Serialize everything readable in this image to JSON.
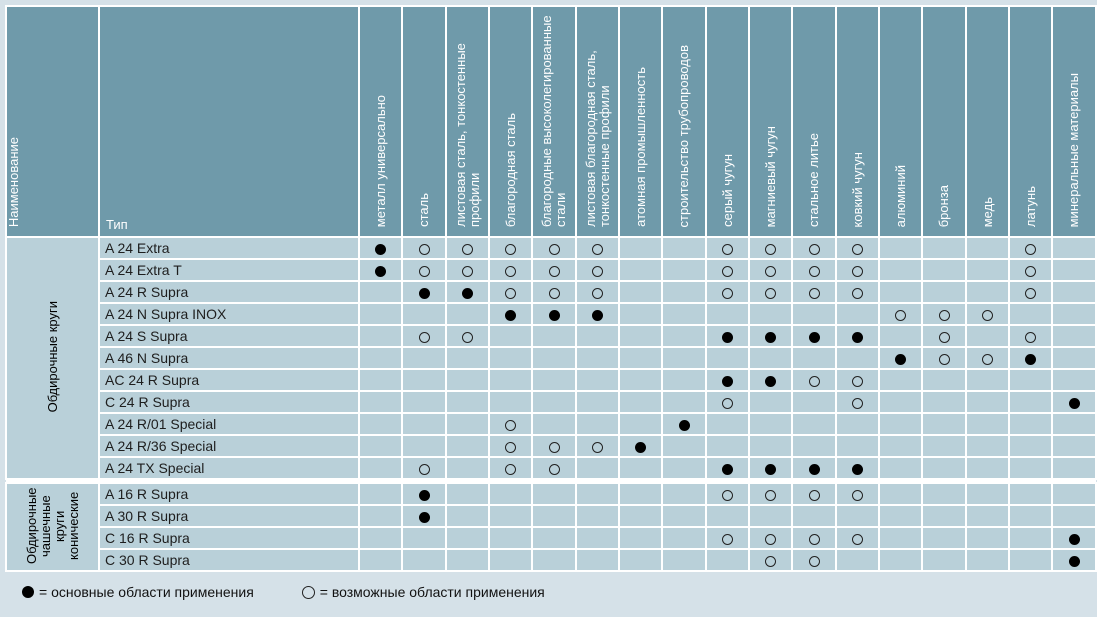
{
  "header": {
    "name_label": "Наименование",
    "type_label": "Тип",
    "columns": [
      "металл универсально",
      "сталь",
      "листовая сталь, тонкостенные профили",
      "благородная сталь",
      "благородные высоколегированные стали",
      "листовая благородная сталь, тонкостенные профили",
      "атомная промышленность",
      "строительство трубопроводов",
      "серый чугун",
      "магниевый чугун",
      "стальное литье",
      "ковкий чугун",
      "алюминий",
      "бронза",
      "медь",
      "латунь",
      "минеральные материалы"
    ]
  },
  "groups": [
    {
      "name": "Обдирочные круги",
      "rows": [
        {
          "type": "A 24 Extra",
          "marks": [
            "main",
            "opt",
            "opt",
            "opt",
            "opt",
            "opt",
            "",
            "",
            "opt",
            "opt",
            "opt",
            "opt",
            "",
            "",
            "",
            "opt",
            ""
          ]
        },
        {
          "type": "A 24 Extra T",
          "marks": [
            "main",
            "opt",
            "opt",
            "opt",
            "opt",
            "opt",
            "",
            "",
            "opt",
            "opt",
            "opt",
            "opt",
            "",
            "",
            "",
            "opt",
            ""
          ]
        },
        {
          "type": "A 24 R Supra",
          "marks": [
            "",
            "main",
            "main",
            "opt",
            "opt",
            "opt",
            "",
            "",
            "opt",
            "opt",
            "opt",
            "opt",
            "",
            "",
            "",
            "opt",
            ""
          ]
        },
        {
          "type": "A 24 N Supra INOX",
          "marks": [
            "",
            "",
            "",
            "main",
            "main",
            "main",
            "",
            "",
            "",
            "",
            "",
            "",
            "opt",
            "opt",
            "opt",
            "",
            ""
          ]
        },
        {
          "type": "A 24 S Supra",
          "marks": [
            "",
            "opt",
            "opt",
            "",
            "",
            "",
            "",
            "",
            "main",
            "main",
            "main",
            "main",
            "",
            "opt",
            "",
            "opt",
            ""
          ]
        },
        {
          "type": "A 46 N Supra",
          "marks": [
            "",
            "",
            "",
            "",
            "",
            "",
            "",
            "",
            "",
            "",
            "",
            "",
            "main",
            "opt",
            "opt",
            "main",
            ""
          ]
        },
        {
          "type": "AC 24 R Supra",
          "marks": [
            "",
            "",
            "",
            "",
            "",
            "",
            "",
            "",
            "main",
            "main",
            "opt",
            "opt",
            "",
            "",
            "",
            "",
            ""
          ]
        },
        {
          "type": "C 24 R Supra",
          "marks": [
            "",
            "",
            "",
            "",
            "",
            "",
            "",
            "",
            "opt",
            "",
            "",
            "opt",
            "",
            "",
            "",
            "",
            "main"
          ]
        },
        {
          "type": "A 24 R/01 Special",
          "marks": [
            "",
            "",
            "",
            "opt",
            "",
            "",
            "",
            "main",
            "",
            "",
            "",
            "",
            "",
            "",
            "",
            "",
            ""
          ]
        },
        {
          "type": "A 24 R/36 Special",
          "marks": [
            "",
            "",
            "",
            "opt",
            "opt",
            "opt",
            "main",
            "",
            "",
            "",
            "",
            "",
            "",
            "",
            "",
            "",
            ""
          ]
        },
        {
          "type": "A 24 TX Special",
          "marks": [
            "",
            "opt",
            "",
            "opt",
            "opt",
            "",
            "",
            "",
            "main",
            "main",
            "main",
            "main",
            "",
            "",
            "",
            "",
            ""
          ]
        }
      ]
    },
    {
      "name": "Обдирочные чашечные круги конические",
      "rows": [
        {
          "type": "A 16 R Supra",
          "marks": [
            "",
            "main",
            "",
            "",
            "",
            "",
            "",
            "",
            "opt",
            "opt",
            "opt",
            "opt",
            "",
            "",
            "",
            "",
            ""
          ]
        },
        {
          "type": "A 30 R Supra",
          "marks": [
            "",
            "main",
            "",
            "",
            "",
            "",
            "",
            "",
            "",
            "",
            "",
            "",
            "",
            "",
            "",
            "",
            ""
          ]
        },
        {
          "type": "C 16 R Supra",
          "marks": [
            "",
            "",
            "",
            "",
            "",
            "",
            "",
            "",
            "opt",
            "opt",
            "opt",
            "opt",
            "",
            "",
            "",
            "",
            "main"
          ]
        },
        {
          "type": "C 30 R Supra",
          "marks": [
            "",
            "",
            "",
            "",
            "",
            "",
            "",
            "",
            "",
            "opt",
            "opt",
            "",
            "",
            "",
            "",
            "",
            "main"
          ]
        }
      ]
    }
  ],
  "legend": {
    "main_label": "= основные области применения",
    "opt_label": "= возможные области применения"
  }
}
